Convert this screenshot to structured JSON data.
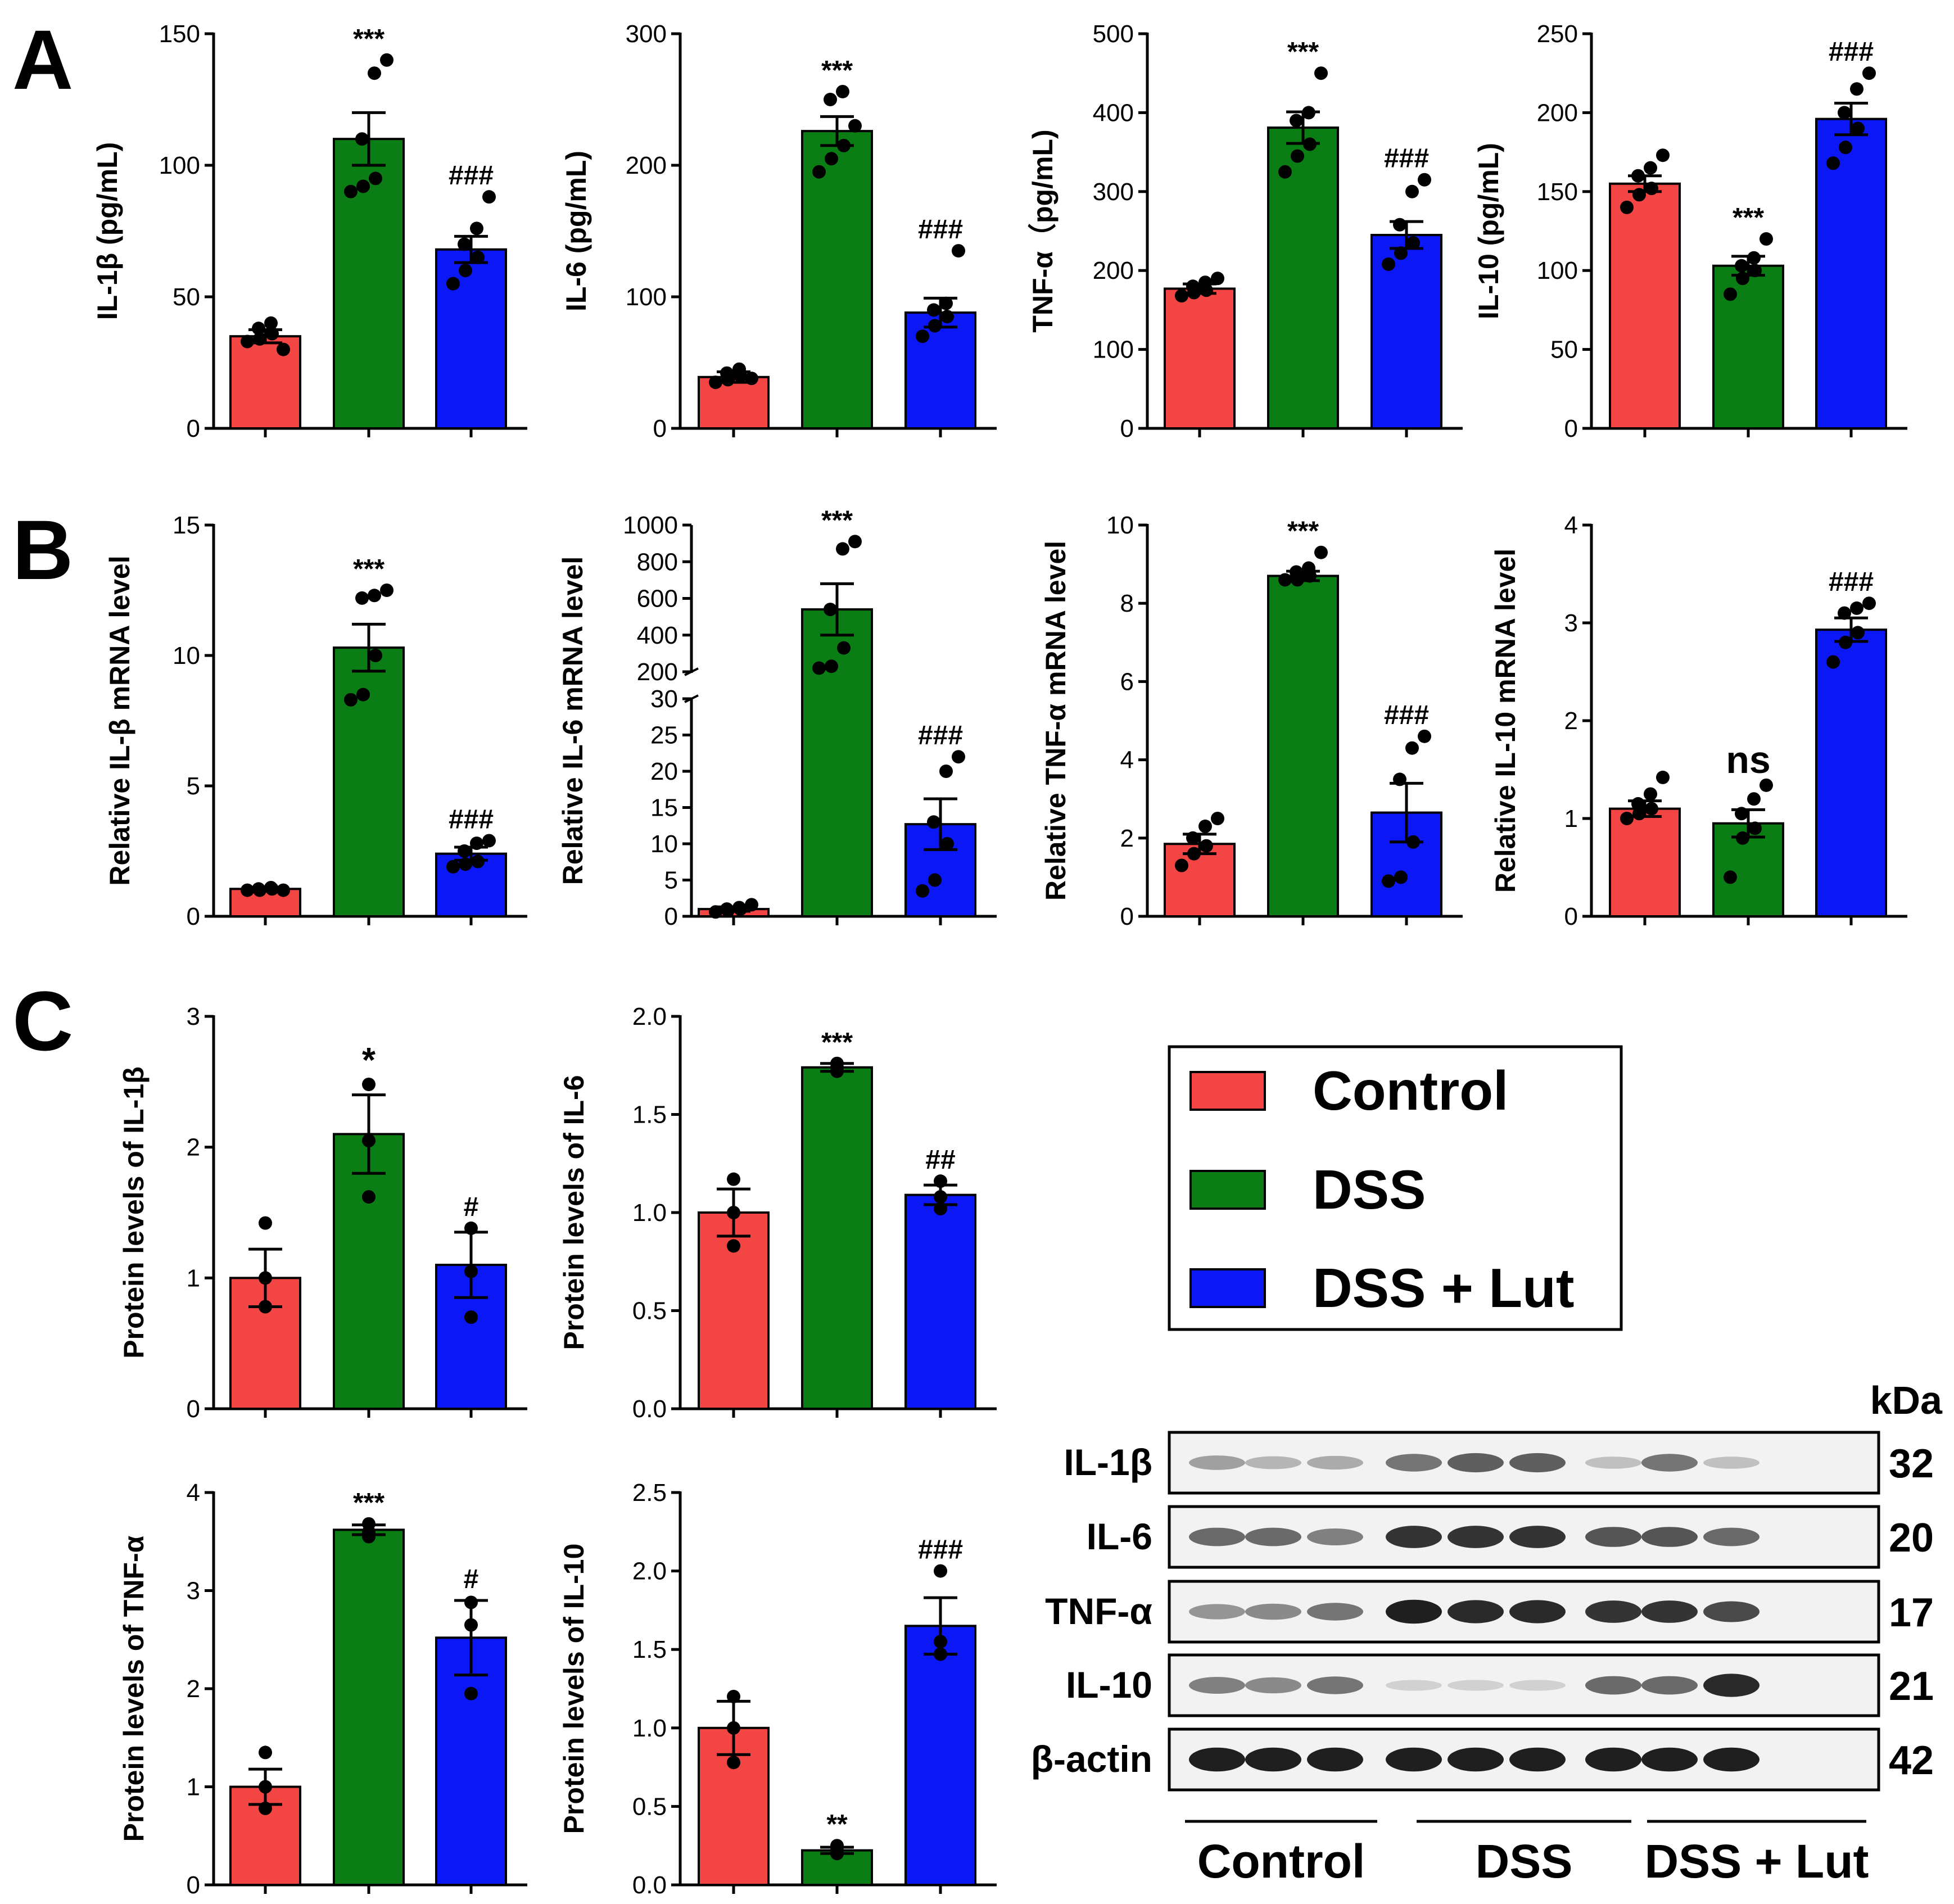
{
  "panels": {
    "a": "A",
    "b": "B",
    "c": "C"
  },
  "colors": {
    "control": "#F44545",
    "dss": "#0A7E14",
    "lut": "#0B17F5"
  },
  "legend": {
    "control": "Control",
    "dss": "DSS",
    "lut": "DSS + Lut"
  },
  "chart_data": [
    {
      "id": "a-il1b",
      "type": "bar",
      "title": "",
      "ylabel": "IL-1β (pg/mL)",
      "ylim": [
        0,
        150
      ],
      "ticks": [
        0,
        50,
        100,
        150
      ],
      "categories": [
        "Control",
        "DSS",
        "DSS + Lut"
      ],
      "values": [
        35,
        110,
        68
      ],
      "sem": [
        2.5,
        10,
        5
      ],
      "points": [
        [
          33,
          34,
          36,
          38,
          40,
          30
        ],
        [
          90,
          92,
          95,
          110,
          135,
          140
        ],
        [
          55,
          60,
          65,
          70,
          76,
          88
        ]
      ],
      "annotations": [
        "",
        "***",
        "###"
      ]
    },
    {
      "id": "a-il6",
      "type": "bar",
      "title": "",
      "ylabel": "IL-6 (pg/mL)",
      "ylim": [
        0,
        300
      ],
      "ticks": [
        0,
        100,
        200,
        300
      ],
      "categories": [
        "Control",
        "DSS",
        "DSS + Lut"
      ],
      "values": [
        39,
        226,
        88
      ],
      "sem": [
        4,
        11,
        11
      ],
      "points": [
        [
          35,
          37,
          40,
          42,
          45,
          38
        ],
        [
          195,
          205,
          215,
          250,
          256,
          230
        ],
        [
          70,
          78,
          85,
          90,
          95,
          135
        ]
      ],
      "annotations": [
        "",
        "***",
        "###"
      ]
    },
    {
      "id": "a-tnf",
      "type": "bar",
      "title": "",
      "ylabel": "TNF-α（pg/mL)",
      "ylim": [
        0,
        500
      ],
      "ticks": [
        0,
        100,
        200,
        300,
        400,
        500
      ],
      "categories": [
        "Control",
        "DSS",
        "DSS + Lut"
      ],
      "values": [
        177,
        381,
        245
      ],
      "sem": [
        6,
        20,
        17
      ],
      "points": [
        [
          168,
          172,
          175,
          180,
          185,
          190
        ],
        [
          325,
          345,
          360,
          390,
          400,
          450
        ],
        [
          208,
          222,
          235,
          258,
          300,
          315
        ]
      ],
      "annotations": [
        "",
        "***",
        "###"
      ]
    },
    {
      "id": "a-il10",
      "type": "bar",
      "title": "",
      "ylabel": "IL-10 (pg/mL)",
      "ylim": [
        0,
        250
      ],
      "ticks": [
        0,
        50,
        100,
        150,
        200,
        250
      ],
      "categories": [
        "Control",
        "DSS",
        "DSS + Lut"
      ],
      "values": [
        155,
        103,
        196
      ],
      "sem": [
        5,
        6,
        10
      ],
      "points": [
        [
          140,
          148,
          152,
          160,
          165,
          173
        ],
        [
          85,
          95,
          100,
          103,
          108,
          120
        ],
        [
          168,
          178,
          190,
          200,
          215,
          225
        ]
      ],
      "annotations": [
        "",
        "***",
        "###"
      ]
    },
    {
      "id": "b-il1b",
      "type": "bar",
      "title": "",
      "ylabel": "Relative IL-β mRNA level",
      "ylim": [
        0,
        15
      ],
      "ticks": [
        0,
        5,
        10,
        15
      ],
      "categories": [
        "Control",
        "DSS",
        "DSS + Lut"
      ],
      "values": [
        1.05,
        10.3,
        2.4
      ],
      "sem": [
        0.05,
        0.9,
        0.25
      ],
      "points": [
        [
          1.0,
          1.0,
          1.05,
          1.05,
          1.1,
          1.0
        ],
        [
          8.3,
          8.5,
          10.0,
          12.2,
          12.3,
          12.5
        ],
        [
          1.9,
          2.0,
          2.1,
          2.5,
          2.8,
          2.9
        ]
      ],
      "annotations": [
        "",
        "***",
        "###"
      ]
    },
    {
      "id": "b-il6",
      "type": "bar",
      "title": "",
      "ylabel": "Relative IL-6 mRNA level",
      "ylim": [
        0,
        1000
      ],
      "axis_break": [
        30,
        200
      ],
      "ticks_lower": [
        0,
        5,
        10,
        15,
        20,
        25,
        30
      ],
      "ticks_upper": [
        200,
        400,
        600,
        800,
        1000
      ],
      "categories": [
        "Control",
        "DSS",
        "DSS + Lut"
      ],
      "values": [
        1.0,
        540,
        12.7
      ],
      "sem": [
        0.3,
        140,
        3.5
      ],
      "points": [
        [
          0.6,
          0.8,
          1.0,
          1.0,
          1.2,
          1.6
        ],
        [
          220,
          230,
          330,
          540,
          870,
          910
        ],
        [
          3.5,
          5.0,
          10.0,
          13.0,
          20.0,
          22.0
        ]
      ],
      "annotations": [
        "",
        "***",
        "###"
      ]
    },
    {
      "id": "b-tnf",
      "type": "bar",
      "title": "",
      "ylabel": "Relative TNF-α mRNA level",
      "ylim": [
        0,
        10
      ],
      "ticks": [
        0,
        2,
        4,
        6,
        8,
        10
      ],
      "categories": [
        "Control",
        "DSS",
        "DSS + Lut"
      ],
      "values": [
        1.85,
        8.7,
        2.65
      ],
      "sem": [
        0.25,
        0.12,
        0.75
      ],
      "points": [
        [
          1.3,
          1.6,
          1.8,
          2.0,
          2.3,
          2.5
        ],
        [
          8.6,
          8.6,
          8.7,
          8.8,
          8.9,
          9.3
        ],
        [
          0.9,
          1.0,
          1.9,
          3.5,
          4.3,
          4.6
        ]
      ],
      "annotations": [
        "",
        "***",
        "###"
      ]
    },
    {
      "id": "b-il10",
      "type": "bar",
      "title": "",
      "ylabel": "Relative IL-10 mRNA level",
      "ylim": [
        0,
        4
      ],
      "ticks": [
        0,
        1,
        2,
        3,
        4
      ],
      "categories": [
        "Control",
        "DSS",
        "DSS + Lut"
      ],
      "values": [
        1.1,
        0.95,
        2.93
      ],
      "sem": [
        0.08,
        0.14,
        0.12
      ],
      "points": [
        [
          1.0,
          1.05,
          1.1,
          1.15,
          1.25,
          1.42
        ],
        [
          0.4,
          0.8,
          0.9,
          1.05,
          1.2,
          1.34
        ],
        [
          2.6,
          2.8,
          2.9,
          3.1,
          3.15,
          3.2
        ]
      ],
      "annotations": [
        "",
        "ns",
        "###"
      ]
    },
    {
      "id": "c-il1b",
      "type": "bar",
      "title": "",
      "ylabel": "Protein levels of IL-1β",
      "ylim": [
        0,
        3
      ],
      "ticks": [
        0,
        1,
        2,
        3
      ],
      "categories": [
        "Control",
        "DSS",
        "DSS + Lut"
      ],
      "values": [
        1.0,
        2.1,
        1.1
      ],
      "sem": [
        0.22,
        0.3,
        0.25
      ],
      "points": [
        [
          0.78,
          1.0,
          1.42
        ],
        [
          1.62,
          2.05,
          2.48
        ],
        [
          0.7,
          1.05,
          1.38
        ]
      ],
      "annotations": [
        "",
        "*",
        "#"
      ]
    },
    {
      "id": "c-il6",
      "type": "bar",
      "title": "",
      "ylabel": "Protein levels of IL-6",
      "ylim": [
        0,
        2
      ],
      "ticks": [
        0.0,
        0.5,
        1.0,
        1.5,
        2.0
      ],
      "categories": [
        "Control",
        "DSS",
        "DSS + Lut"
      ],
      "values": [
        1.0,
        1.74,
        1.09
      ],
      "sem": [
        0.12,
        0.02,
        0.05
      ],
      "points": [
        [
          0.83,
          1.0,
          1.17
        ],
        [
          1.72,
          1.74,
          1.76
        ],
        [
          1.02,
          1.08,
          1.16
        ]
      ],
      "annotations": [
        "",
        "***",
        "##"
      ]
    },
    {
      "id": "c-tnf",
      "type": "bar",
      "title": "",
      "ylabel": "Protein levels of TNF-α",
      "ylim": [
        0,
        4
      ],
      "ticks": [
        0,
        1,
        2,
        3,
        4
      ],
      "categories": [
        "Control",
        "DSS",
        "DSS + Lut"
      ],
      "values": [
        1.0,
        3.62,
        2.52
      ],
      "sem": [
        0.18,
        0.05,
        0.38
      ],
      "points": [
        [
          0.78,
          1.0,
          1.35
        ],
        [
          3.55,
          3.6,
          3.68
        ],
        [
          1.95,
          2.65,
          2.88
        ]
      ],
      "annotations": [
        "",
        "***",
        "#"
      ]
    },
    {
      "id": "c-il10",
      "type": "bar",
      "title": "",
      "ylabel": "Protein levels of IL-10",
      "ylim": [
        0,
        2.5
      ],
      "ticks": [
        0.0,
        0.5,
        1.0,
        1.5,
        2.0,
        2.5
      ],
      "categories": [
        "Control",
        "DSS",
        "DSS + Lut"
      ],
      "values": [
        1.0,
        0.22,
        1.65
      ],
      "sem": [
        0.17,
        0.02,
        0.18
      ],
      "points": [
        [
          0.78,
          1.0,
          1.2
        ],
        [
          0.2,
          0.22,
          0.25
        ],
        [
          1.47,
          1.55,
          2.0
        ]
      ],
      "annotations": [
        "",
        "**",
        "###"
      ]
    }
  ],
  "blot": {
    "unit": "kDa",
    "rows": [
      {
        "label": "IL-1β",
        "kda": "32",
        "bands": [
          0.35,
          0.25,
          0.3,
          0.55,
          0.65,
          0.65,
          0.2,
          0.55,
          0.2
        ]
      },
      {
        "label": "IL-6",
        "kda": "20",
        "bands": [
          0.6,
          0.6,
          0.5,
          0.85,
          0.85,
          0.85,
          0.7,
          0.7,
          0.6
        ]
      },
      {
        "label": "TNF-α",
        "kda": "17",
        "bands": [
          0.4,
          0.45,
          0.55,
          0.95,
          0.9,
          0.9,
          0.85,
          0.85,
          0.75
        ]
      },
      {
        "label": "IL-10",
        "kda": "21",
        "bands": [
          0.5,
          0.45,
          0.55,
          0.12,
          0.12,
          0.12,
          0.6,
          0.6,
          0.9
        ]
      },
      {
        "label": "β-actin",
        "kda": "42",
        "bands": [
          0.95,
          0.95,
          0.95,
          0.95,
          0.95,
          0.95,
          0.95,
          0.95,
          0.95
        ]
      }
    ],
    "groups": [
      "Control",
      "DSS",
      "DSS + Lut"
    ]
  }
}
